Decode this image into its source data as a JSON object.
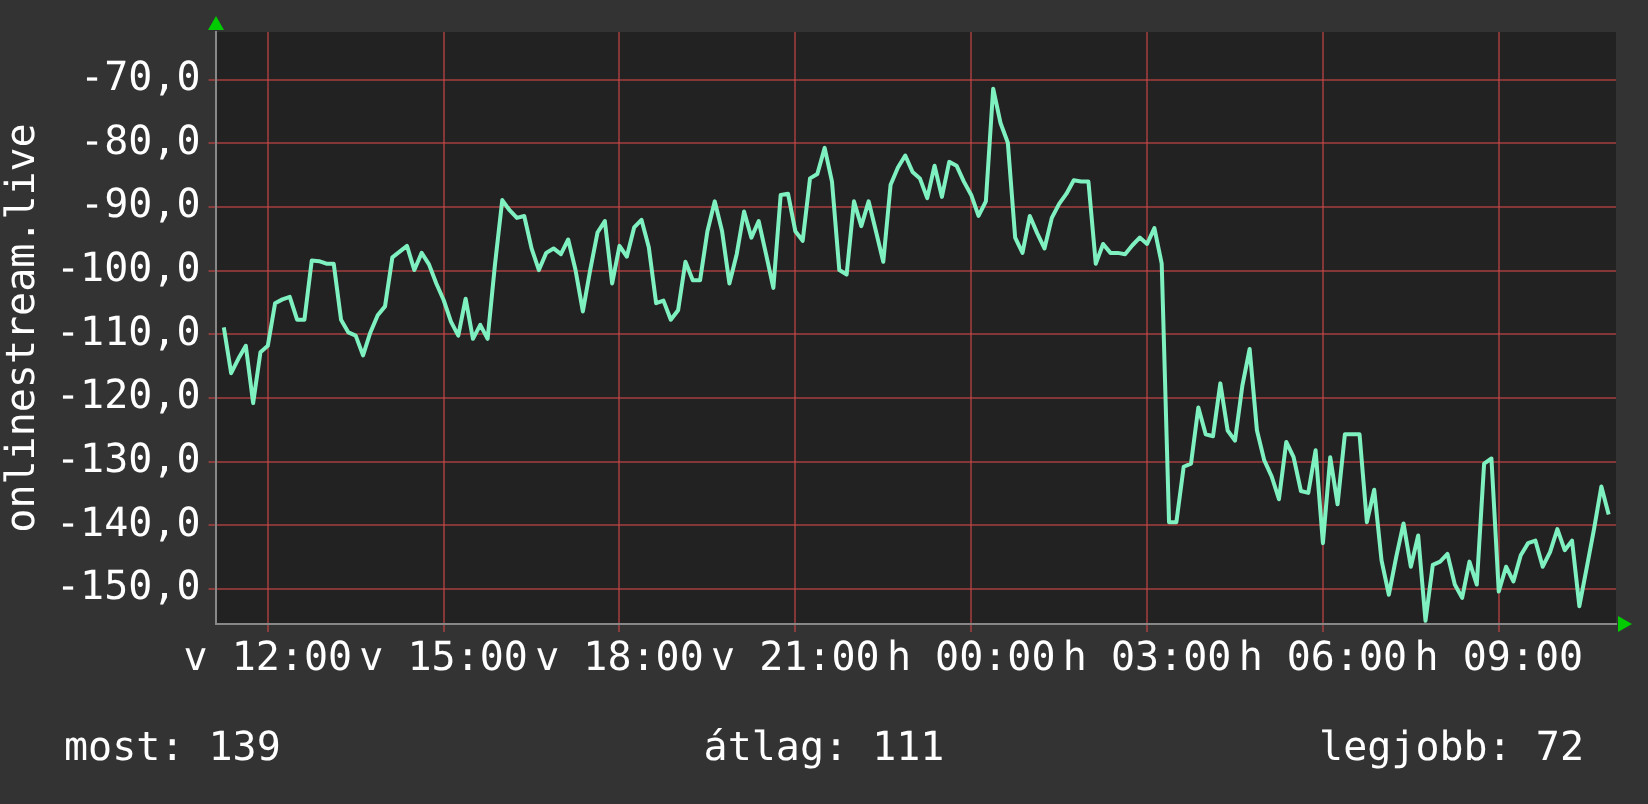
{
  "chart_data": {
    "type": "line",
    "ylabel": "onlinestream.live",
    "color": "#7ff0c0",
    "categories": [
      null,
      null,
      null,
      null,
      null,
      null,
      null,
      "v 12:00",
      null,
      null,
      null,
      null,
      null,
      null,
      null,
      null,
      null,
      null,
      null,
      null,
      null,
      null,
      null,
      null,
      null,
      null,
      null,
      null,
      null,
      null,
      null,
      "v 15:00",
      null,
      null,
      null,
      null,
      null,
      null,
      null,
      null,
      null,
      null,
      null,
      null,
      null,
      null,
      null,
      null,
      null,
      null,
      null,
      null,
      null,
      null,
      null,
      "v 18:00",
      null,
      null,
      null,
      null,
      null,
      null,
      null,
      null,
      null,
      null,
      null,
      null,
      null,
      null,
      null,
      null,
      null,
      null,
      null,
      null,
      null,
      null,
      null,
      "v 21:00",
      null,
      null,
      null,
      null,
      null,
      null,
      null,
      null,
      null,
      null,
      null,
      null,
      null,
      null,
      null,
      null,
      null,
      null,
      null,
      null,
      null,
      null,
      null,
      "h 00:00",
      null,
      null,
      null,
      null,
      null,
      null,
      null,
      null,
      null,
      null,
      null,
      null,
      null,
      null,
      null,
      null,
      null,
      null,
      null,
      null,
      null,
      null,
      null,
      "h 03:00",
      null,
      null,
      null,
      null,
      null,
      null,
      null,
      null,
      null,
      null,
      null,
      null,
      null,
      null,
      null,
      null,
      null,
      null,
      null,
      null,
      null,
      null,
      null,
      "h 06:00",
      null,
      null,
      null,
      null,
      null,
      null,
      null,
      null,
      null,
      null,
      null,
      null,
      null,
      null,
      null,
      null,
      null,
      null,
      null,
      null,
      null,
      null,
      null,
      "h 09:00",
      null,
      null,
      null,
      null,
      null,
      null,
      null,
      null,
      null,
      null,
      null,
      null,
      null,
      null,
      null,
      null
    ],
    "values": [
      null,
      -108.9,
      -116.1,
      -113.8,
      -111.8,
      -120.8,
      -112.8,
      -111.8,
      -105.1,
      -104.5,
      -104.1,
      -107.7,
      -107.7,
      -98.4,
      -98.5,
      -98.9,
      -98.9,
      -107.7,
      -109.7,
      -110.2,
      -113.3,
      -109.7,
      -107,
      -105.6,
      -97.9,
      -97,
      -96.1,
      -99.9,
      -97.2,
      -99,
      -102,
      -104.6,
      -108,
      -110.2,
      -104.4,
      -110.7,
      -108.5,
      -110.7,
      -99.1,
      -88.9,
      -90.5,
      -91.7,
      -91.4,
      -96.5,
      -99.9,
      -97.2,
      -96.5,
      -97.4,
      -95.1,
      -99.9,
      -106.4,
      -99.9,
      -94,
      -92.2,
      -102,
      -96.1,
      -97.8,
      -93.2,
      -92,
      -96.3,
      -105.1,
      -104.7,
      -107.7,
      -106.2,
      -98.6,
      -101.5,
      -101.5,
      -93.8,
      -89.1,
      -93.8,
      -102,
      -97.4,
      -90.7,
      -94.8,
      -92.2,
      -97.4,
      -102.7,
      -88.1,
      -87.9,
      -93.8,
      -95.3,
      -85.5,
      -84.8,
      -80.7,
      -86,
      -99.9,
      -100.6,
      -89.1,
      -93,
      -89.1,
      -93.8,
      -98.6,
      -86.5,
      -83.8,
      -81.9,
      -84.5,
      -85.5,
      -88.6,
      -83.5,
      -88.4,
      -82.9,
      -83.5,
      -86,
      -88.1,
      -91.4,
      -89.1,
      -71.4,
      -76.8,
      -79.9,
      -94.8,
      -97.2,
      -91.4,
      -94.1,
      -96.5,
      -91.7,
      -89.5,
      -87.9,
      -85.8,
      -86,
      -86,
      -98.9,
      -95.8,
      -97.2,
      -97.2,
      -97.4,
      -96,
      -94.8,
      -95.8,
      -93.3,
      -98.9,
      -139.5,
      -139.5,
      -130.8,
      -130.3,
      -121.5,
      -125.7,
      -126,
      -117.7,
      -125.1,
      -126.7,
      -118.1,
      -112.3,
      -125.1,
      -129.8,
      -132.3,
      -135.9,
      -126.9,
      -129.3,
      -134.6,
      -134.9,
      -128.2,
      -142.8,
      -129.3,
      -136.7,
      -125.7,
      -125.7,
      -125.7,
      -139.5,
      -134.4,
      -145.5,
      -150.9,
      -145,
      -139.7,
      -146.5,
      -141.6,
      -155,
      -146.2,
      -145.7,
      -144.5,
      -149.3,
      -151.4,
      -145.7,
      -149.3,
      -130.3,
      -129.5,
      -150.4,
      -146.5,
      -148.8,
      -144.7,
      -142.8,
      -142.4,
      -146.5,
      -144.2,
      -140.6,
      -143.9,
      -142.4,
      -152.7,
      -146.7,
      -140.6,
      -133.9,
      -138.3,
      null
    ],
    "ylim": [
      -155.5,
      -62.5
    ],
    "yticks": [
      {
        "value": -150,
        "label": "-150,0"
      },
      {
        "value": -140,
        "label": "-140,0"
      },
      {
        "value": -130,
        "label": "-130,0"
      },
      {
        "value": -120,
        "label": "-120,0"
      },
      {
        "value": -110,
        "label": "-110,0"
      },
      {
        "value": -100,
        "label": "-100,0"
      },
      {
        "value": -90,
        "label": "-90,0"
      },
      {
        "value": -80,
        "label": "-80,0"
      },
      {
        "value": -70,
        "label": "-70,0"
      }
    ],
    "grid": true,
    "marker": "none",
    "line_style": "solid",
    "annotations": [
      "most: 139",
      "átlag: 111",
      "legjobb: 72"
    ]
  }
}
